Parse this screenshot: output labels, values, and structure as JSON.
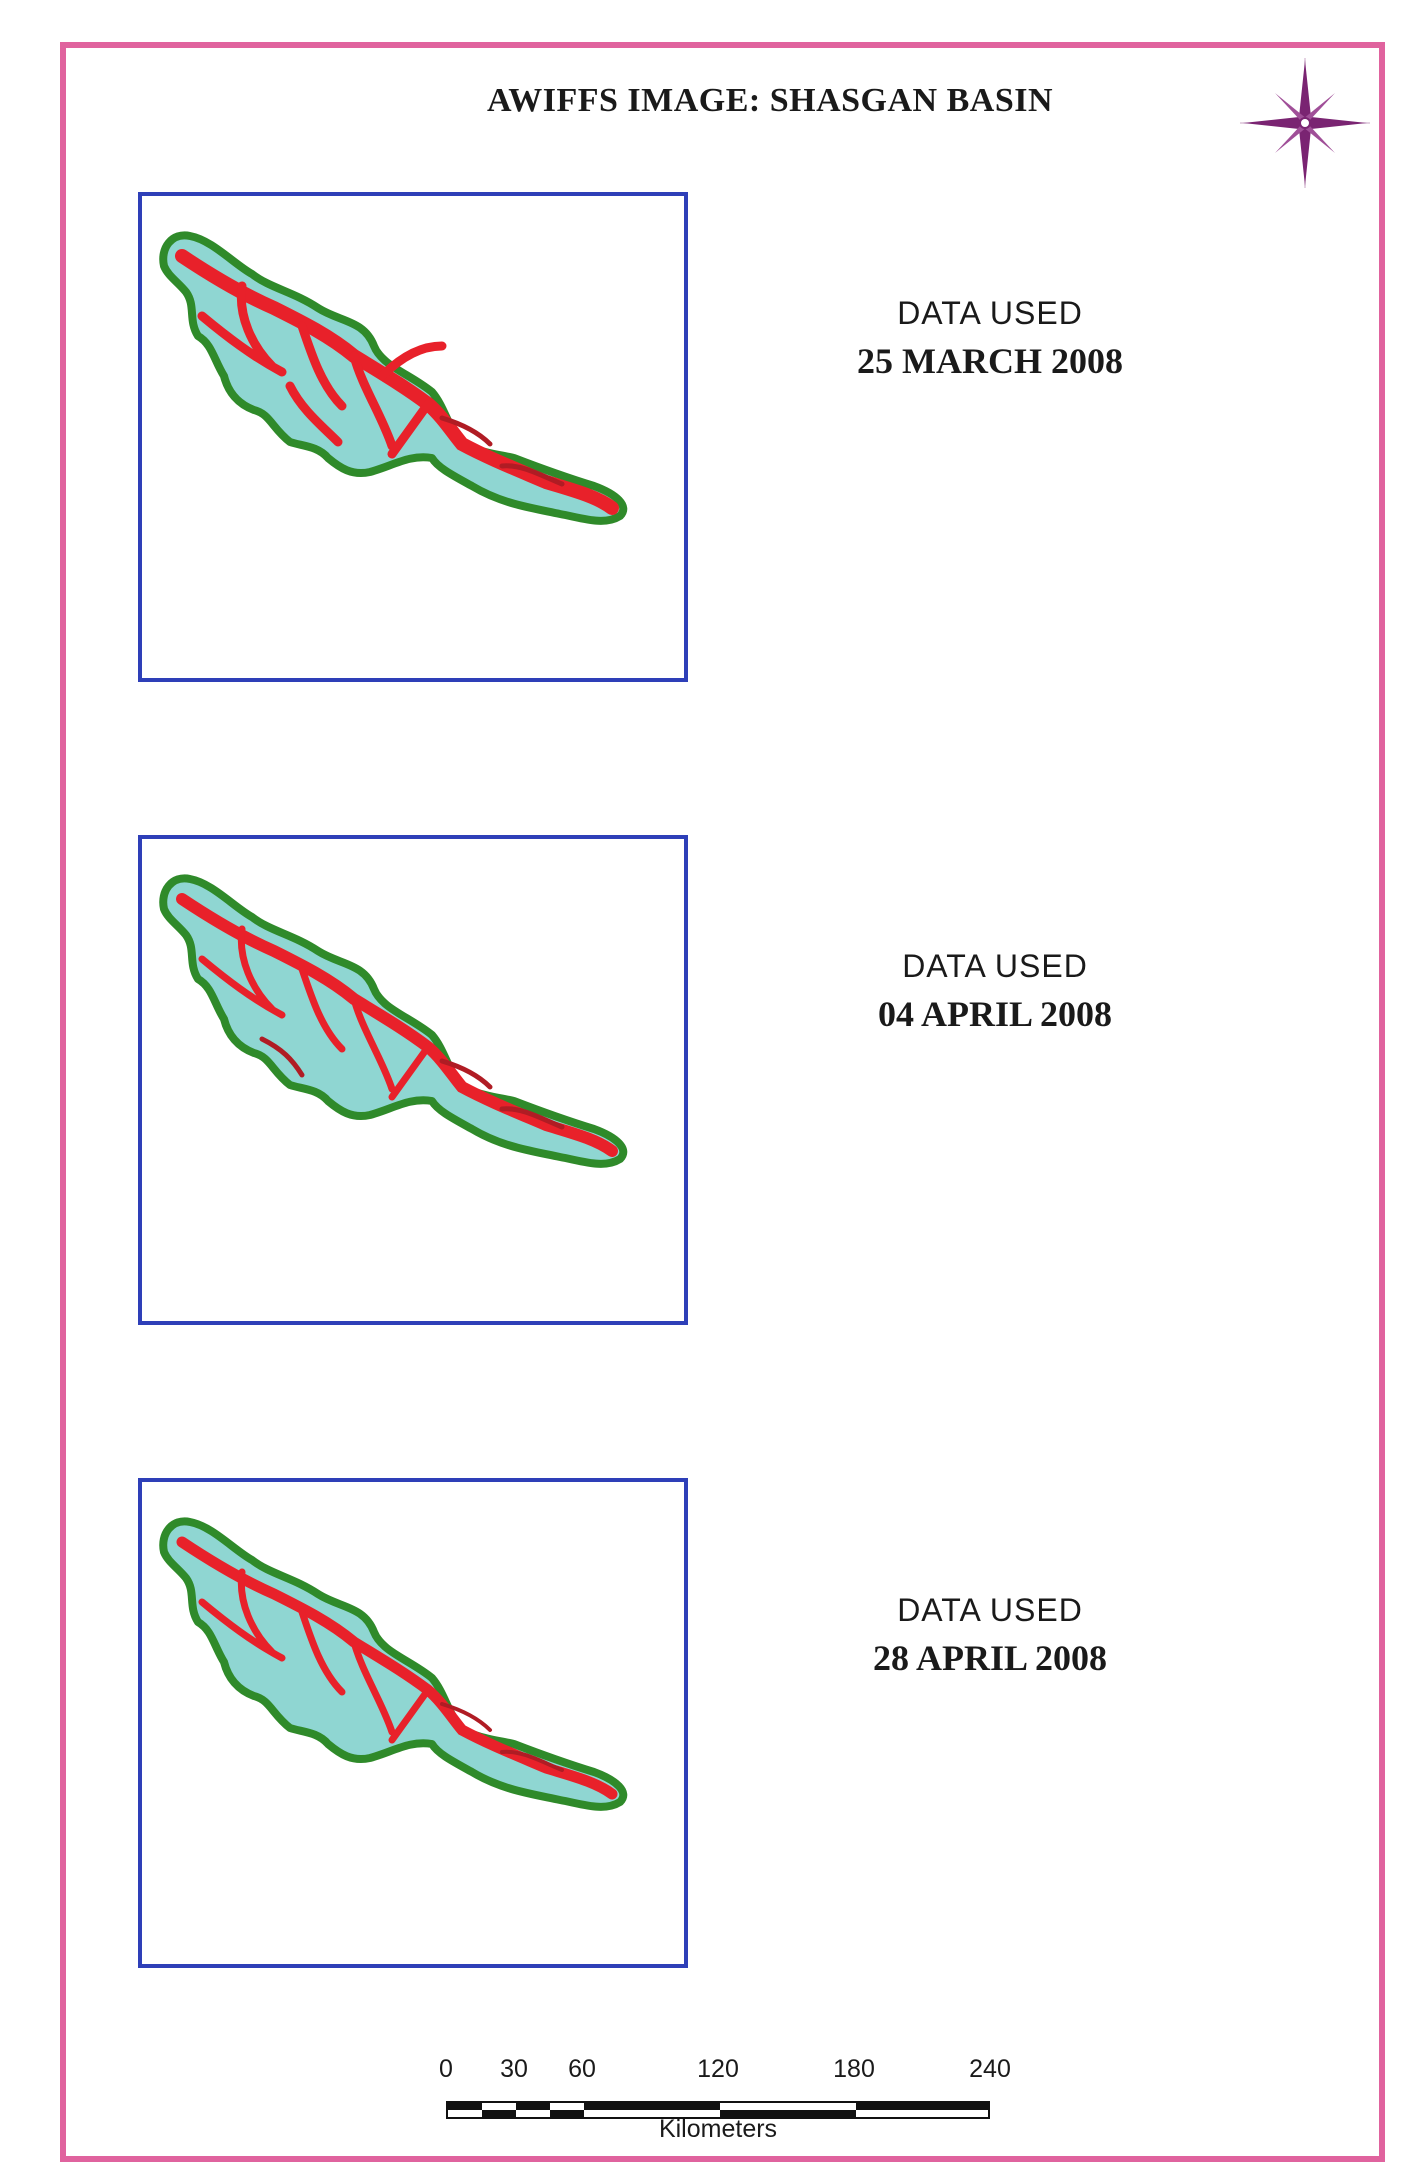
{
  "title": "AWIFFS IMAGE: SHASGAN  BASIN",
  "panels": [
    {
      "label": "DATA  USED",
      "date": "25 MARCH 2008"
    },
    {
      "label": "DATA  USED",
      "date": "04 APRIL 2008"
    },
    {
      "label": "DATA  USED",
      "date": "28 APRIL 2008"
    }
  ],
  "scale_bar": {
    "ticks": [
      "0",
      "30",
      "60",
      "120",
      "180",
      "240"
    ],
    "tick_values_km": [
      0,
      30,
      60,
      120,
      180,
      240
    ],
    "units": "Kilometers"
  },
  "north_arrow": {
    "icon": "compass-rose-icon"
  },
  "colors": {
    "frame": "#e0639e",
    "map_border": "#2e3fb8",
    "basin_outline": "#2f8a2a",
    "snow_cover": "#e8212a",
    "terrain": "#8fd6d2",
    "compass": "#7a2472"
  }
}
